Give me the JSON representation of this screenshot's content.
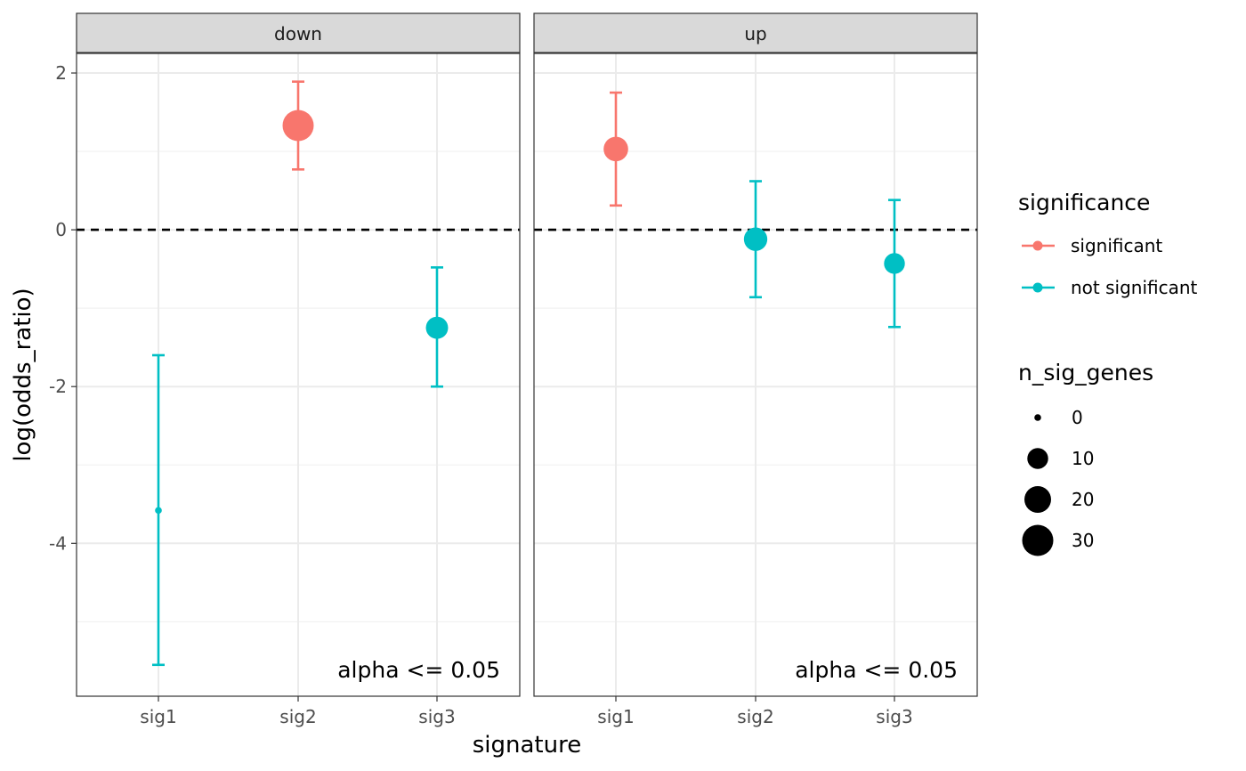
{
  "chart_data": {
    "type": "scatter",
    "subtype": "faceted point-range",
    "xlabel": "signature",
    "ylabel": "log(odds_ratio)",
    "categories": [
      "sig1",
      "sig2",
      "sig3"
    ],
    "ylim": [
      -5.95,
      2.25
    ],
    "yticks": [
      -4,
      -2,
      0,
      2
    ],
    "yticklabels": [
      "-4",
      "-2",
      "0",
      "2"
    ],
    "grid": true,
    "reference_line": {
      "y": 0,
      "style": "dashed"
    },
    "facets": [
      {
        "label": "down",
        "annotation": "alpha <= 0.05",
        "points": [
          {
            "x": "sig1",
            "y": -3.58,
            "ymin": -5.55,
            "ymax": -1.6,
            "significance": "not significant",
            "n_sig_genes": 0
          },
          {
            "x": "sig2",
            "y": 1.33,
            "ymin": 0.77,
            "ymax": 1.89,
            "significance": "significant",
            "n_sig_genes": 30
          },
          {
            "x": "sig3",
            "y": -1.25,
            "ymin": -2.0,
            "ymax": -0.48,
            "significance": "not significant",
            "n_sig_genes": 12
          }
        ]
      },
      {
        "label": "up",
        "annotation": "alpha <= 0.05",
        "points": [
          {
            "x": "sig1",
            "y": 1.03,
            "ymin": 0.31,
            "ymax": 1.75,
            "significance": "significant",
            "n_sig_genes": 16
          },
          {
            "x": "sig2",
            "y": -0.12,
            "ymin": -0.86,
            "ymax": 0.62,
            "significance": "not significant",
            "n_sig_genes": 14
          },
          {
            "x": "sig3",
            "y": -0.43,
            "ymin": -1.24,
            "ymax": 0.38,
            "significance": "not significant",
            "n_sig_genes": 10
          }
        ]
      }
    ],
    "legend": {
      "placement": "right",
      "color": {
        "title": "significance",
        "items": [
          {
            "label": "significant",
            "color": "#F8766D"
          },
          {
            "label": "not significant",
            "color": "#00BFC4"
          }
        ]
      },
      "size": {
        "title": "n_sig_genes",
        "items": [
          {
            "label": "0",
            "value": 0
          },
          {
            "label": "10",
            "value": 10
          },
          {
            "label": "20",
            "value": 20
          },
          {
            "label": "30",
            "value": 30
          }
        ]
      }
    }
  }
}
